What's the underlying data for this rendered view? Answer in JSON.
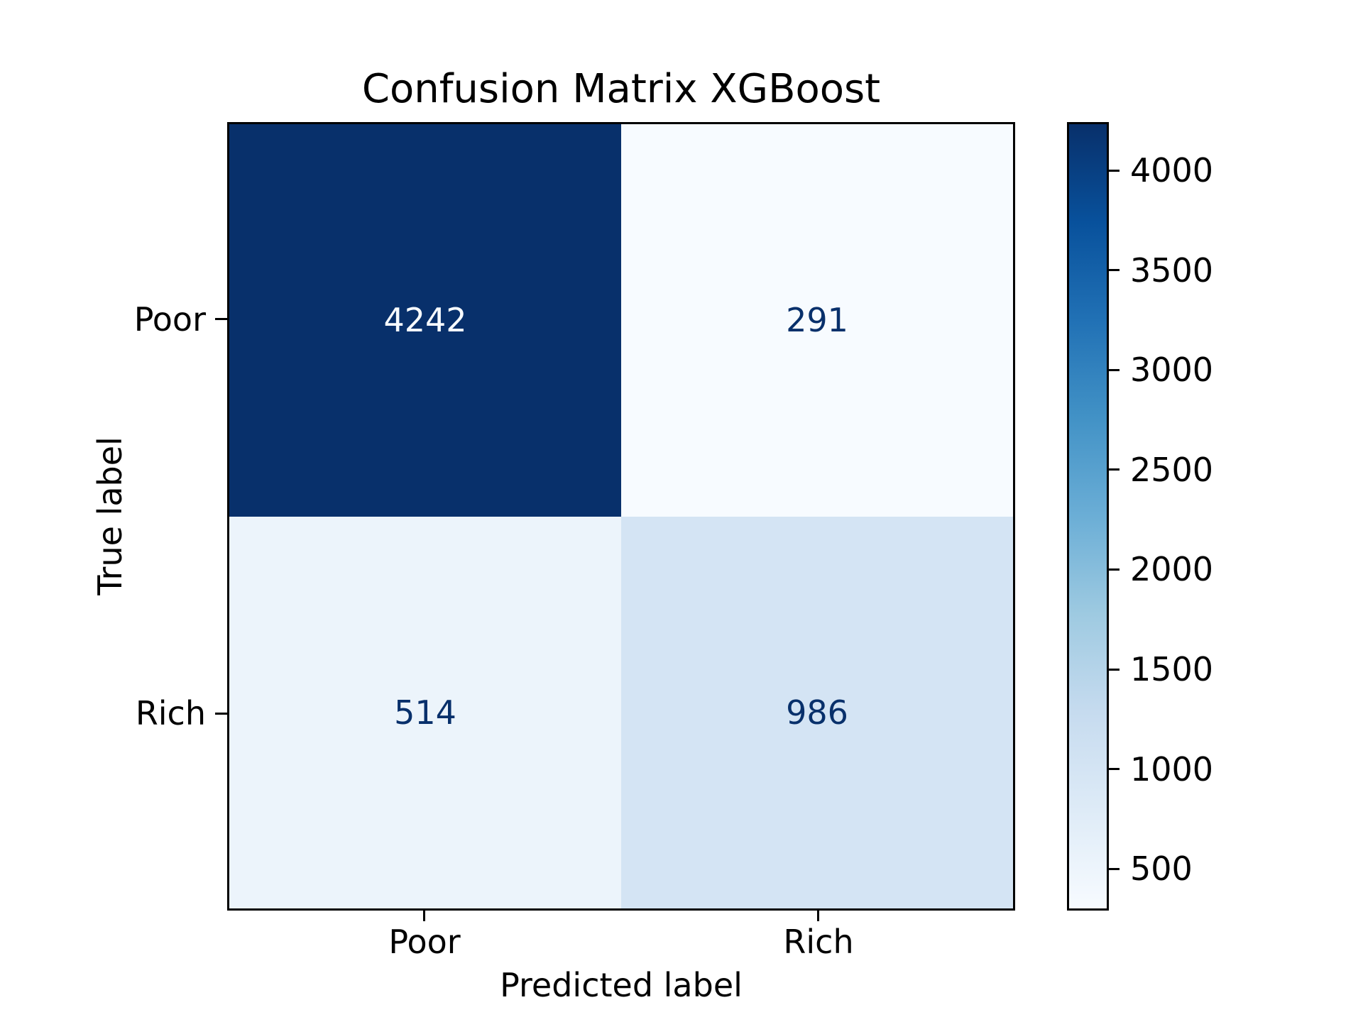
{
  "figure": {
    "background": "#ffffff",
    "axis_color": "#000000"
  },
  "chart_data": {
    "type": "heatmap",
    "title": "Confusion Matrix XGBoost",
    "xlabel": "Predicted label",
    "ylabel": "True label",
    "x_categories": [
      "Poor",
      "Rich"
    ],
    "y_categories": [
      "Poor",
      "Rich"
    ],
    "matrix": [
      [
        4242,
        291
      ],
      [
        514,
        986
      ]
    ],
    "colormap": "Blues",
    "vmin": 291,
    "vmax": 4242,
    "grid": false,
    "legend_position": "right-colorbar",
    "colorbar_ticks": [
      500,
      1000,
      1500,
      2000,
      2500,
      3000,
      3500,
      4000
    ],
    "colormap_stops_low_to_high": [
      "#f7fbff",
      "#deebf7",
      "#c6dbef",
      "#9ecae1",
      "#6baed6",
      "#4292c6",
      "#2171b5",
      "#08519c",
      "#08306b"
    ],
    "cell_colors": [
      [
        "#08306b",
        "#f7fbff"
      ],
      [
        "#ecf4fb",
        "#d4e4f4"
      ]
    ],
    "cell_text_colors": [
      [
        "#f7fbff",
        "#08306b"
      ],
      [
        "#08306b",
        "#08306b"
      ]
    ]
  }
}
